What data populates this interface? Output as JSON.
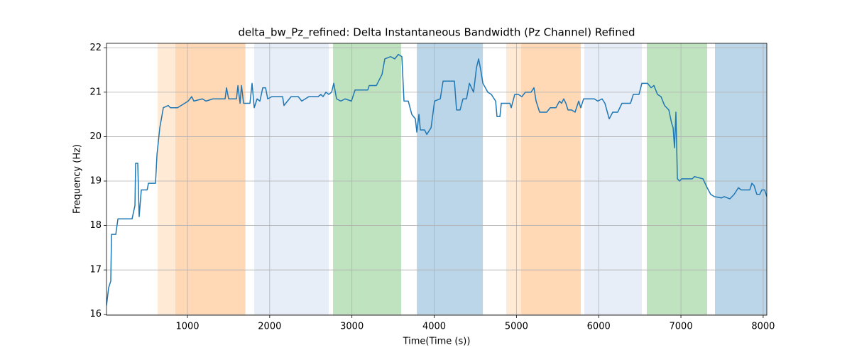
{
  "chart_data": {
    "type": "line",
    "title": "delta_bw_Pz_refined: Delta Instantaneous Bandwidth (Pz Channel) Refined",
    "x_label": "Time(Time (s))",
    "y_label": "Frequency (Hz)",
    "xlim": [
      16,
      8044
    ],
    "ylim": [
      15.98,
      22.1
    ],
    "xticks": [
      1000,
      2000,
      3000,
      4000,
      5000,
      6000,
      7000,
      8000
    ],
    "yticks": [
      16,
      17,
      18,
      19,
      20,
      21,
      22
    ],
    "grid": true,
    "spans": [
      {
        "x0": 638,
        "x1": 853,
        "color": "#ffbb78"
      },
      {
        "x0": 853,
        "x1": 1705,
        "color": "#ff7f0e"
      },
      {
        "x0": 1812,
        "x1": 2718,
        "color": "#aec7e8"
      },
      {
        "x0": 2770,
        "x1": 3599,
        "color": "#2ca02c"
      },
      {
        "x0": 3789,
        "x1": 4592,
        "color": "#1f77b4"
      },
      {
        "x0": 4876,
        "x1": 5058,
        "color": "#ffbb78"
      },
      {
        "x0": 5058,
        "x1": 5783,
        "color": "#ff7f0e"
      },
      {
        "x0": 5826,
        "x1": 6525,
        "color": "#aec7e8"
      },
      {
        "x0": 6585,
        "x1": 7319,
        "color": "#2ca02c"
      },
      {
        "x0": 7414,
        "x1": 8044,
        "color": "#1f77b4"
      }
    ],
    "span_opacity": 0.3,
    "series": [
      {
        "color": "#1f77b4",
        "x": [
          16,
          42,
          68,
          77,
          129,
          155,
          327,
          362,
          370,
          396,
          413,
          439,
          510,
          526,
          612,
          630,
          664,
          707,
          767,
          793,
          880,
          923,
          966,
          1009,
          1052,
          1078,
          1182,
          1225,
          1311,
          1458,
          1475,
          1501,
          1596,
          1614,
          1640,
          1657,
          1683,
          1760,
          1786,
          1812,
          1847,
          1881,
          1916,
          1950,
          1976,
          2028,
          2157,
          2174,
          2217,
          2261,
          2347,
          2390,
          2476,
          2588,
          2623,
          2649,
          2684,
          2718,
          2753,
          2779,
          2813,
          2865,
          2917,
          2994,
          3038,
          3193,
          3210,
          3297,
          3366,
          3400,
          3469,
          3521,
          3564,
          3607,
          3633,
          3685,
          3728,
          3771,
          3789,
          3815,
          3832,
          3884,
          3910,
          3962,
          4005,
          4074,
          4108,
          4246,
          4272,
          4315,
          4350,
          4393,
          4428,
          4479,
          4514,
          4540,
          4566,
          4592,
          4652,
          4695,
          4747,
          4764,
          4799,
          4816,
          4920,
          4937,
          4980,
          5023,
          5066,
          5109,
          5178,
          5213,
          5239,
          5282,
          5368,
          5411,
          5480,
          5524,
          5549,
          5575,
          5601,
          5627,
          5670,
          5713,
          5757,
          5782,
          5817,
          5946,
          5989,
          6041,
          6076,
          6128,
          6171,
          6231,
          6283,
          6387,
          6421,
          6490,
          6525,
          6594,
          6637,
          6672,
          6715,
          6758,
          6801,
          6853,
          6887,
          6905,
          6922,
          6939,
          6957,
          6983,
          7009,
          7138,
          7164,
          7268,
          7319,
          7362,
          7405,
          7492,
          7526,
          7595,
          7647,
          7699,
          7733,
          7837,
          7863,
          7889,
          7923,
          7958,
          7984,
          8018,
          8044
        ],
        "values": [
          16.2,
          16.6,
          16.75,
          17.8,
          17.8,
          18.15,
          18.15,
          18.45,
          19.4,
          19.4,
          18.2,
          18.8,
          18.8,
          18.95,
          18.95,
          19.6,
          20.2,
          20.65,
          20.7,
          20.65,
          20.65,
          20.7,
          20.75,
          20.8,
          20.9,
          20.8,
          20.85,
          20.8,
          20.85,
          20.85,
          21.1,
          20.85,
          20.85,
          21.15,
          20.75,
          21.15,
          20.75,
          20.75,
          21.2,
          20.65,
          20.85,
          20.8,
          21.1,
          21.1,
          20.85,
          20.9,
          20.9,
          20.7,
          20.8,
          20.9,
          20.9,
          20.8,
          20.9,
          20.9,
          20.95,
          20.9,
          21.0,
          20.95,
          21.0,
          21.2,
          20.85,
          20.8,
          20.85,
          20.8,
          21.05,
          21.05,
          21.15,
          21.15,
          21.4,
          21.75,
          21.8,
          21.75,
          21.85,
          21.8,
          20.8,
          20.8,
          20.5,
          20.4,
          20.1,
          20.5,
          20.15,
          20.15,
          20.05,
          20.2,
          20.8,
          20.85,
          21.25,
          21.25,
          20.6,
          20.6,
          20.85,
          20.85,
          21.2,
          21.0,
          21.55,
          21.75,
          21.5,
          21.2,
          21.0,
          20.95,
          20.8,
          20.45,
          20.45,
          20.75,
          20.75,
          20.65,
          20.95,
          20.95,
          20.9,
          21.0,
          21.0,
          21.1,
          20.8,
          20.55,
          20.55,
          20.65,
          20.65,
          20.8,
          20.75,
          20.85,
          20.75,
          20.6,
          20.6,
          20.55,
          20.8,
          20.65,
          20.85,
          20.85,
          20.8,
          20.85,
          20.75,
          20.4,
          20.55,
          20.55,
          20.75,
          20.75,
          20.95,
          20.95,
          21.2,
          21.2,
          21.1,
          21.15,
          20.95,
          20.9,
          20.7,
          20.6,
          20.3,
          20.2,
          19.75,
          20.55,
          19.05,
          19.0,
          19.05,
          19.05,
          19.1,
          19.05,
          18.85,
          18.7,
          18.65,
          18.62,
          18.65,
          18.6,
          18.7,
          18.85,
          18.8,
          18.8,
          18.95,
          18.9,
          18.7,
          18.7,
          18.8,
          18.8,
          18.65
        ]
      }
    ]
  }
}
